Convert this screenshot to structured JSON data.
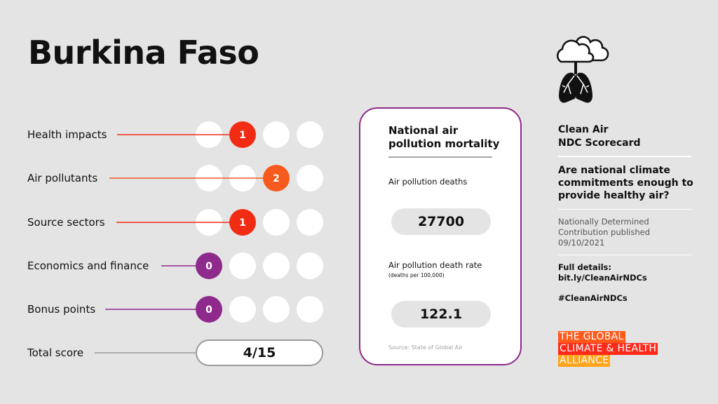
{
  "country": "Burkina Faso",
  "colors": {
    "red": "#f22b14",
    "orange": "#f65a1c",
    "purple": "#8e2a8b",
    "logo_orange": "#ff5a1a",
    "logo_red": "#ff2a1a",
    "logo_amber": "#ffa41b"
  },
  "categories": [
    {
      "label": "Health impacts",
      "score": "1",
      "filled_position": 2,
      "color": "#f22b14"
    },
    {
      "label": "Air pollutants",
      "score": "2",
      "filled_position": 3,
      "color": "#f65a1c"
    },
    {
      "label": "Source sectors",
      "score": "1",
      "filled_position": 2,
      "color": "#f22b14"
    },
    {
      "label": "Economics and finance",
      "score": "0",
      "filled_position": 1,
      "color": "#8e2a8b"
    },
    {
      "label": "Bonus points",
      "score": "0",
      "filled_position": 1,
      "color": "#8e2a8b"
    }
  ],
  "total": {
    "label": "Total score",
    "value": "4/15"
  },
  "card": {
    "title": "National air pollution mortality",
    "deaths_label": "Air pollution deaths",
    "deaths_value": "27700",
    "rate_label": "Air pollution death rate",
    "rate_sub": "(deaths per 100,000)",
    "rate_value": "122.1",
    "source": "Source: State of Global Air"
  },
  "sidebar": {
    "icon": "cloud-lungs-icon",
    "title_line1": "Clean Air",
    "title_line2": "NDC Scorecard",
    "question": "Are national climate commitments enough to provide healthy air?",
    "ndc_line1": "Nationally Determined",
    "ndc_line2": "Contribution published",
    "ndc_date": "09/10/2021",
    "details_label": "Full details:",
    "details_link": "bit.ly/CleanAirNDCs",
    "hashtag": "#CleanAirNDCs",
    "logo": [
      "THE GLOBAL",
      "CLIMATE & HEALTH",
      "ALLIANCE"
    ]
  }
}
